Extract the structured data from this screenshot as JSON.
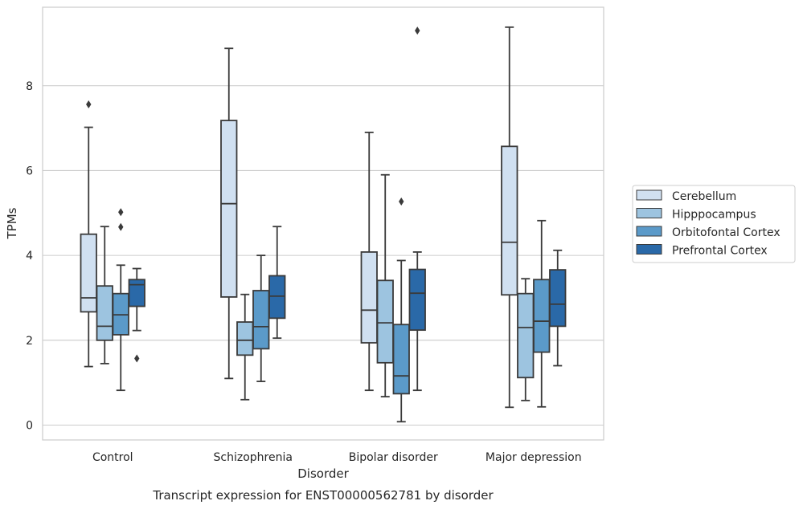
{
  "chart_data": {
    "type": "box",
    "title": "",
    "caption": "Transcript expression for ENST00000562781 by disorder",
    "xlabel": "Disorder",
    "ylabel": "TPMs",
    "ylim": [
      -0.35,
      9.85
    ],
    "yticks": [
      0,
      2,
      4,
      6,
      8
    ],
    "grid": "horizontal",
    "legend_position": "right",
    "categories": [
      "Control",
      "Schizophrenia",
      "Bipolar disorder",
      "Major depression"
    ],
    "series": [
      {
        "name": "Cerebellum",
        "color": "#d0e0f1",
        "boxes": [
          {
            "whislo": 1.38,
            "q1": 2.67,
            "med": 3.0,
            "q3": 4.5,
            "whishi": 7.02,
            "fliers": [
              7.56
            ]
          },
          {
            "whislo": 1.1,
            "q1": 3.02,
            "med": 5.22,
            "q3": 7.18,
            "whishi": 8.88,
            "fliers": []
          },
          {
            "whislo": 0.82,
            "q1": 1.94,
            "med": 2.71,
            "q3": 4.08,
            "whishi": 6.9,
            "fliers": []
          },
          {
            "whislo": 0.42,
            "q1": 3.07,
            "med": 4.31,
            "q3": 6.57,
            "whishi": 9.38,
            "fliers": []
          }
        ]
      },
      {
        "name": "Hipppocampus",
        "color": "#9dc4e0",
        "boxes": [
          {
            "whislo": 1.45,
            "q1": 2.0,
            "med": 2.33,
            "q3": 3.28,
            "whishi": 4.68,
            "fliers": []
          },
          {
            "whislo": 0.6,
            "q1": 1.65,
            "med": 2.0,
            "q3": 2.43,
            "whishi": 3.08,
            "fliers": []
          },
          {
            "whislo": 0.67,
            "q1": 1.47,
            "med": 2.41,
            "q3": 3.41,
            "whishi": 5.9,
            "fliers": []
          },
          {
            "whislo": 0.58,
            "q1": 1.12,
            "med": 2.3,
            "q3": 3.1,
            "whishi": 3.45,
            "fliers": []
          }
        ]
      },
      {
        "name": "Orbitofontal Cortex",
        "color": "#5b9ac9",
        "boxes": [
          {
            "whislo": 0.82,
            "q1": 2.13,
            "med": 2.6,
            "q3": 3.1,
            "whishi": 3.77,
            "fliers": [
              4.67,
              5.02
            ]
          },
          {
            "whislo": 1.03,
            "q1": 1.8,
            "med": 2.32,
            "q3": 3.17,
            "whishi": 4.0,
            "fliers": []
          },
          {
            "whislo": 0.08,
            "q1": 0.74,
            "med": 1.16,
            "q3": 2.37,
            "whishi": 3.88,
            "fliers": [
              5.27
            ]
          },
          {
            "whislo": 0.43,
            "q1": 1.72,
            "med": 2.45,
            "q3": 3.43,
            "whishi": 4.82,
            "fliers": []
          }
        ]
      },
      {
        "name": "Prefrontal Cortex",
        "color": "#2a69a8",
        "boxes": [
          {
            "whislo": 2.23,
            "q1": 2.8,
            "med": 3.31,
            "q3": 3.43,
            "whishi": 3.69,
            "fliers": [
              1.57
            ]
          },
          {
            "whislo": 2.05,
            "q1": 2.52,
            "med": 3.04,
            "q3": 3.52,
            "whishi": 4.68,
            "fliers": []
          },
          {
            "whislo": 0.82,
            "q1": 2.24,
            "med": 3.11,
            "q3": 3.67,
            "whishi": 4.08,
            "fliers": [
              9.3
            ]
          },
          {
            "whislo": 1.4,
            "q1": 2.33,
            "med": 2.85,
            "q3": 3.66,
            "whishi": 4.12,
            "fliers": []
          }
        ]
      }
    ]
  }
}
